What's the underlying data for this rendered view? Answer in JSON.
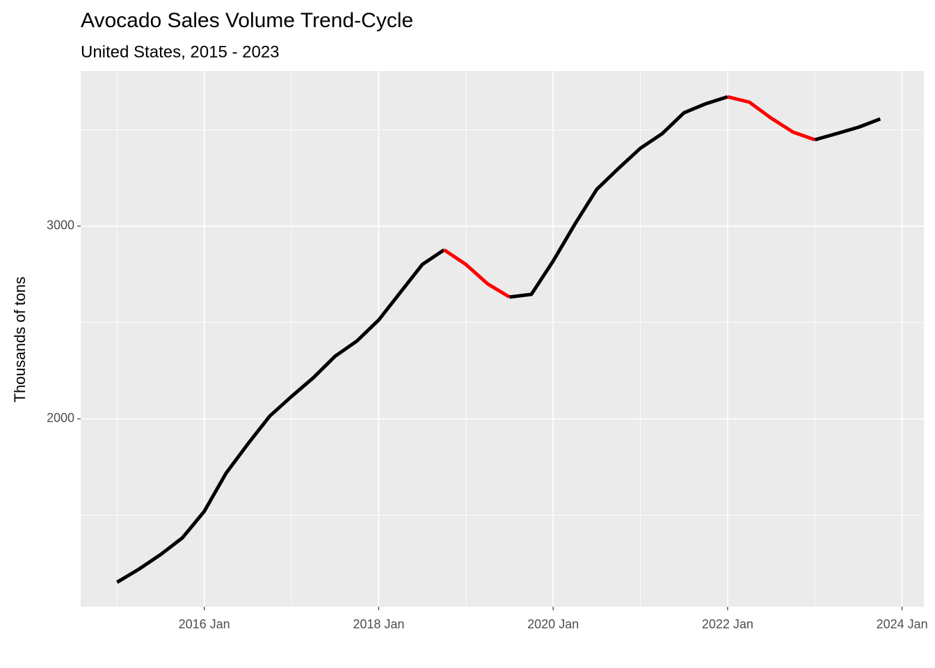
{
  "chart_data": {
    "type": "line",
    "title": "Avocado Sales Volume Trend-Cycle",
    "subtitle": "United States, 2015 - 2023",
    "y_label": "Thousands of tons",
    "x": [
      "2015-01",
      "2015-04",
      "2015-07",
      "2015-10",
      "2016-01",
      "2016-04",
      "2016-07",
      "2016-10",
      "2017-01",
      "2017-04",
      "2017-07",
      "2017-10",
      "2018-01",
      "2018-04",
      "2018-07",
      "2018-10",
      "2019-01",
      "2019-04",
      "2019-07",
      "2019-10",
      "2020-01",
      "2020-04",
      "2020-07",
      "2020-10",
      "2021-01",
      "2021-04",
      "2021-07",
      "2021-10",
      "2022-01",
      "2022-04",
      "2022-07",
      "2022-10",
      "2023-01",
      "2023-04",
      "2023-07",
      "2023-10"
    ],
    "values": [
      1152,
      1220,
      1296,
      1383,
      1520,
      1718,
      1870,
      2014,
      2116,
      2213,
      2325,
      2404,
      2513,
      2657,
      2801,
      2877,
      2801,
      2700,
      2632,
      2646,
      2819,
      3011,
      3191,
      3300,
      3404,
      3480,
      3588,
      3635,
      3671,
      3643,
      3560,
      3488,
      3448,
      3480,
      3513,
      3556
    ],
    "point_colors": [
      "#000000",
      "#000000",
      "#000000",
      "#000000",
      "#000000",
      "#000000",
      "#000000",
      "#000000",
      "#000000",
      "#000000",
      "#000000",
      "#000000",
      "#000000",
      "#000000",
      "#000000",
      "#ff0000",
      "#ff0000",
      "#ff0000",
      "#ff0000",
      "#000000",
      "#000000",
      "#000000",
      "#000000",
      "#000000",
      "#000000",
      "#000000",
      "#000000",
      "#000000",
      "#ff0000",
      "#ff0000",
      "#ff0000",
      "#ff0000",
      "#ff0000",
      "#000000",
      "#000000",
      "#000000"
    ],
    "xlim": [
      "2014-08",
      "2024-04"
    ],
    "xticks": [
      {
        "value": "2016-01",
        "label": "2016 Jan"
      },
      {
        "value": "2018-01",
        "label": "2018 Jan"
      },
      {
        "value": "2020-01",
        "label": "2020 Jan"
      },
      {
        "value": "2022-01",
        "label": "2022 Jan"
      },
      {
        "value": "2024-01",
        "label": "2024 Jan"
      }
    ],
    "x_minor_grid": [
      "2015-01",
      "2017-01",
      "2019-01",
      "2021-01",
      "2023-01"
    ],
    "ylim": [
      1025,
      3805
    ],
    "yticks": [
      2000,
      3000
    ],
    "y_minor_grid": [
      1500,
      2500,
      3500
    ],
    "grid": true
  }
}
